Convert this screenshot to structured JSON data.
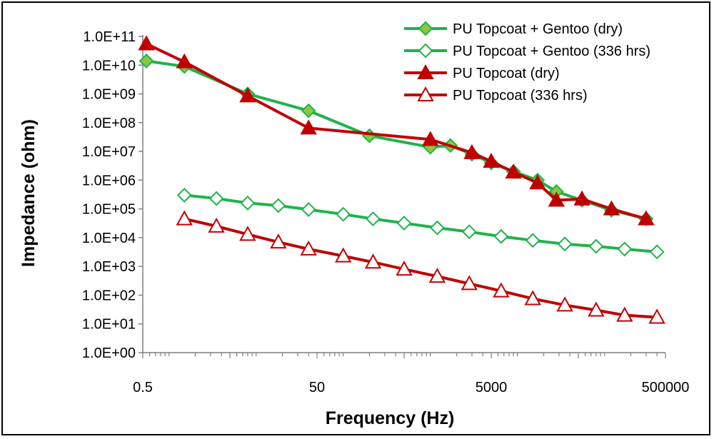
{
  "colors": {
    "green_line": "#1fb34a",
    "green_marker": "#8dc63f",
    "red_line": "#c00000",
    "axis": "#7f7f7f"
  },
  "chart_data": {
    "type": "line",
    "xlabel": "Frequency (Hz)",
    "ylabel": "Impedance (ohm)",
    "x_scale": "log",
    "y_scale": "log",
    "xlim": [
      0.5,
      500000
    ],
    "ylim": [
      1,
      100000000000
    ],
    "x_ticks": [
      "0.5",
      "50",
      "5000",
      "500000"
    ],
    "y_ticks": [
      "1.0E+00",
      "1.0E+01",
      "1.0E+02",
      "1.0E+03",
      "1.0E+04",
      "1.0E+05",
      "1.0E+06",
      "1.0E+07",
      "1.0E+08",
      "1.0E+09",
      "1.0E+10",
      "1.0E+11"
    ],
    "grid": false,
    "legend_position": "top-right",
    "series": [
      {
        "name": "PU Topcoat + Gentoo (dry)",
        "color": "#1fb34a",
        "marker": "diamond",
        "filled": true,
        "x": [
          0.55,
          1.5,
          8,
          40,
          200,
          1000,
          1700,
          3000,
          5000,
          9000,
          17000,
          28000,
          55000,
          120000,
          300000
        ],
        "y": [
          14000000000.0,
          9000000000.0,
          1000000000.0,
          260000000.0,
          35000000.0,
          14000000.0,
          16000000.0,
          8000000.0,
          4000000.0,
          2000000.0,
          1000000.0,
          400000.0,
          200000.0,
          90000.0,
          45000.0
        ]
      },
      {
        "name": "PU Topcoat + Gentoo (336 hrs)",
        "color": "#1fb34a",
        "marker": "diamond",
        "filled": false,
        "x": [
          1.5,
          3.5,
          8,
          18,
          40,
          100,
          220,
          500,
          1200,
          2800,
          6500,
          15000,
          35000,
          80000,
          170000,
          400000
        ],
        "y": [
          300000.0,
          230000.0,
          160000.0,
          130000.0,
          95000.0,
          65000.0,
          45000.0,
          32000.0,
          22000.0,
          16000.0,
          11000.0,
          8000.0,
          6000.0,
          5000.0,
          4000.0,
          3200.0
        ]
      },
      {
        "name": "PU Topcoat (dry)",
        "color": "#c00000",
        "marker": "triangle",
        "filled": true,
        "x": [
          0.55,
          1.5,
          8,
          40,
          1000,
          3000,
          5000,
          9000,
          17000,
          28000,
          55000,
          120000,
          300000
        ],
        "y": [
          55000000000.0,
          13000000000.0,
          850000000.0,
          65000000.0,
          26000000.0,
          9000000.0,
          4500000.0,
          1900000.0,
          800000.0,
          200000.0,
          220000.0,
          100000.0,
          45000.0
        ]
      },
      {
        "name": "PU Topcoat (336 hrs)",
        "color": "#c00000",
        "marker": "triangle",
        "filled": false,
        "x": [
          1.5,
          3.5,
          8,
          18,
          40,
          100,
          220,
          500,
          1200,
          2800,
          6500,
          15000,
          35000,
          80000,
          170000,
          400000
        ],
        "y": [
          45000.0,
          25000.0,
          13000.0,
          7000.0,
          4000.0,
          2300.0,
          1400.0,
          800,
          450,
          250,
          140,
          75,
          45,
          30,
          20,
          17
        ]
      }
    ]
  }
}
